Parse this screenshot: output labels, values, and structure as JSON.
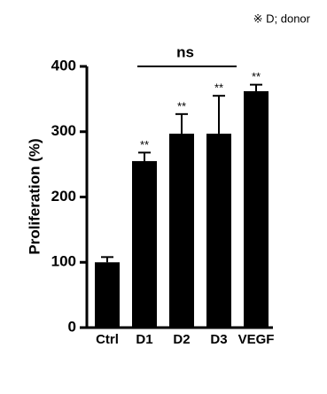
{
  "chart_data": {
    "type": "bar",
    "ylabel": "Proliferation (%)",
    "note": "※ D; donor",
    "categories": [
      "Ctrl",
      "D1",
      "D2",
      "D3",
      "VEGF"
    ],
    "values": [
      100,
      255,
      297,
      297,
      362
    ],
    "errors": [
      8,
      13,
      30,
      58,
      10
    ],
    "color": "#000000",
    "significance": [
      null,
      "**",
      "**",
      "**",
      "**"
    ],
    "comparison": {
      "label": "ns",
      "from": "D1",
      "to": "D3"
    },
    "ylim": [
      0,
      400
    ],
    "yticks": [
      0,
      100,
      200,
      300,
      400
    ],
    "grid": false
  }
}
